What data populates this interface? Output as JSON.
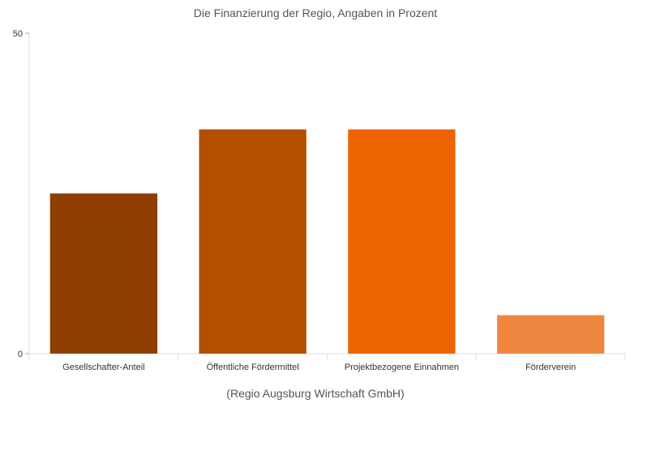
{
  "chart_data": {
    "type": "bar",
    "title": "Die Finanzierung der Regio, Angaben in Prozent",
    "subtitle": "(Regio Augsburg Wirtschaft GmbH)",
    "categories": [
      "Gesellschafter-Anteil",
      "Öffentliche Fördermittel",
      "Projektbezogene Einnahmen",
      "Förderverein"
    ],
    "values": [
      25,
      35,
      35,
      6
    ],
    "colors": [
      "#8e3e00",
      "#b35000",
      "#ee6400",
      "#f08740"
    ],
    "ylim": [
      0,
      50
    ],
    "yticks": [
      "0",
      "50"
    ],
    "grid": false,
    "legend": "none"
  }
}
